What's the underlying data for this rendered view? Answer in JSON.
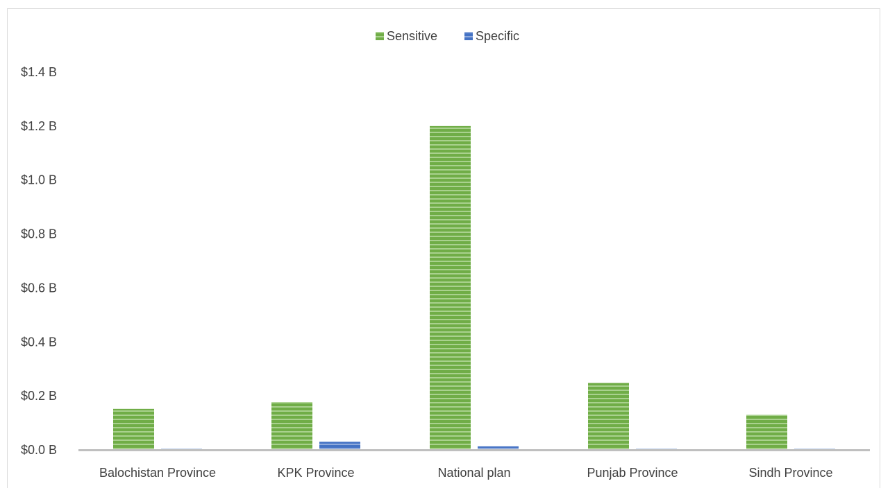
{
  "chart_data": {
    "type": "bar",
    "categories": [
      "Balochistan Province",
      "KPK Province",
      "National plan",
      "Punjab Province",
      "Sindh Province"
    ],
    "series": [
      {
        "name": "Sensitive",
        "values": [
          0.152,
          0.177,
          1.2,
          0.248,
          0.13
        ],
        "color": "#70ad47"
      },
      {
        "name": "Specific",
        "values": [
          0.004,
          0.03,
          0.013,
          0.004,
          0.004
        ],
        "color": "#4472c4"
      }
    ],
    "title": "",
    "xlabel": "",
    "ylabel": "",
    "ylim": [
      0,
      1.4
    ],
    "y_ticks": [
      {
        "value": 0.0,
        "label": "$0.0 B"
      },
      {
        "value": 0.2,
        "label": "$0.2 B"
      },
      {
        "value": 0.4,
        "label": "$0.4 B"
      },
      {
        "value": 0.6,
        "label": "$0.6 B"
      },
      {
        "value": 0.8,
        "label": "$0.8 B"
      },
      {
        "value": 1.0,
        "label": "$1.0 B"
      },
      {
        "value": 1.2,
        "label": "$1.2 B"
      },
      {
        "value": 1.4,
        "label": "$1.4 B"
      }
    ],
    "grid": false,
    "legend_position": "top-center",
    "bar_pattern": "horizontal-stripes"
  }
}
